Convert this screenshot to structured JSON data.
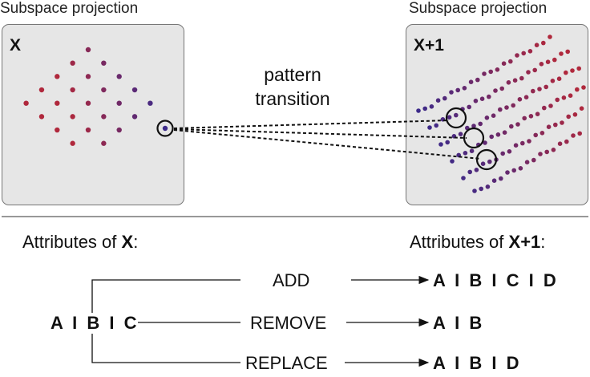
{
  "top": {
    "left_panel": {
      "title": "Subspace projection",
      "label": "X"
    },
    "right_panel": {
      "title": "Subspace projection",
      "label": "X+1"
    },
    "transition_label": [
      "pattern",
      "transition"
    ]
  },
  "bottom": {
    "left_heading_prefix": "Attributes of ",
    "left_heading_var": "X",
    "left_heading_suffix": ":",
    "right_heading_prefix": "Attributes of ",
    "right_heading_var": "X+1",
    "right_heading_suffix": ":",
    "source": "A I B I C",
    "operations": [
      {
        "name": "ADD",
        "result": "A I B I C I D"
      },
      {
        "name": "REMOVE",
        "result": "A I B"
      },
      {
        "name": "REPLACE",
        "result": "A I B I D"
      }
    ]
  },
  "colors": {
    "dot_red": "#b0283c",
    "dot_purple": "#3c2a8a",
    "panel_bg": "#e6e6e6"
  }
}
